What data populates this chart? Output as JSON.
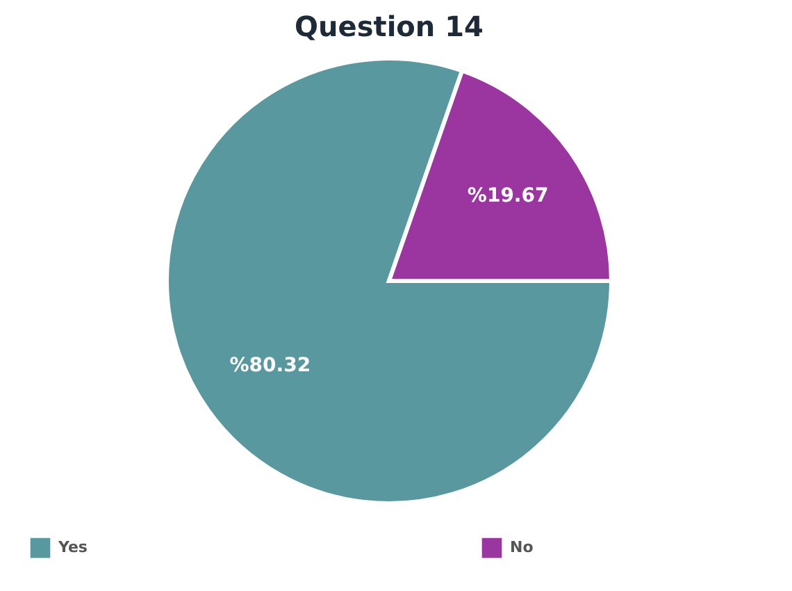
{
  "chart_data": {
    "type": "pie",
    "title": "Question 14",
    "categories": [
      "Yes",
      "No"
    ],
    "values": [
      80.32,
      19.67
    ],
    "colors": [
      "#5a98a0",
      "#9b36a0"
    ],
    "value_labels": [
      "%80.32",
      "%19.67"
    ],
    "legend": "bottom"
  }
}
